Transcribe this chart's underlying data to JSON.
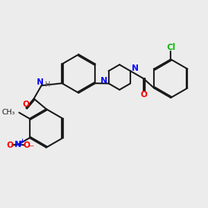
{
  "bg": "#ececec",
  "bond_color": "#1a1a1a",
  "N_color": "#0000ff",
  "O_color": "#ff0000",
  "Cl_color": "#00bb00",
  "H_color": "#606060",
  "lw": 1.6,
  "dbo": 0.055,
  "fs": 8.5,
  "figsize": [
    3.0,
    3.0
  ],
  "dpi": 100,
  "xlim": [
    0,
    10
  ],
  "ylim": [
    0,
    10
  ]
}
